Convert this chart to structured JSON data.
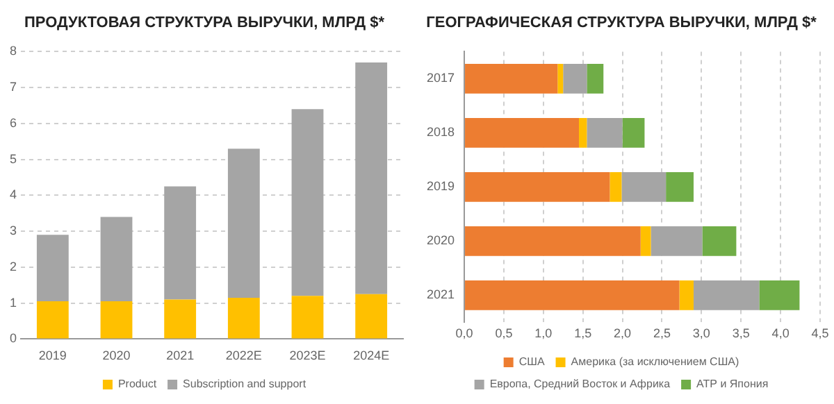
{
  "chart_data": [
    {
      "type": "bar",
      "title": "ПРОДУКТОВАЯ СТРУКТУРА ВЫРУЧКИ, МЛРД $*",
      "categories": [
        "2019",
        "2020",
        "2021",
        "2022E",
        "2023E",
        "2024E"
      ],
      "stacked": true,
      "series": [
        {
          "name": "Product",
          "color": "#ffc000",
          "values": [
            1.05,
            1.05,
            1.1,
            1.15,
            1.2,
            1.25
          ]
        },
        {
          "name": "Subscription and support",
          "color": "#a5a5a5",
          "values": [
            1.85,
            2.35,
            3.15,
            4.15,
            5.2,
            6.45
          ]
        }
      ],
      "ylim": [
        0,
        8
      ],
      "yticks": [
        0,
        1,
        2,
        3,
        4,
        5,
        6,
        7,
        8
      ],
      "grid": "y",
      "legend": "bottom"
    },
    {
      "type": "bar",
      "title": "ГЕОГРАФИЧЕСКАЯ СТРУКТУРА ВЫРУЧКИ, МЛРД $*",
      "orientation": "horizontal",
      "stacked": true,
      "categories": [
        "2017",
        "2018",
        "2019",
        "2020",
        "2021"
      ],
      "series": [
        {
          "name": "США",
          "color": "#ed7d31",
          "values": [
            1.18,
            1.45,
            1.84,
            2.23,
            2.72
          ]
        },
        {
          "name": "Америка (за исключением США)",
          "color": "#ffc000",
          "values": [
            0.07,
            0.1,
            0.15,
            0.13,
            0.18
          ]
        },
        {
          "name": "Европа, Средний Восток и Африка",
          "color": "#a5a5a5",
          "values": [
            0.3,
            0.45,
            0.56,
            0.65,
            0.83
          ]
        },
        {
          "name": "АТР и Япония",
          "color": "#70ad47",
          "values": [
            0.21,
            0.28,
            0.35,
            0.43,
            0.51
          ]
        }
      ],
      "xlim": [
        0,
        4.5
      ],
      "xticks": [
        {
          "value": 0,
          "label": "0,0"
        },
        {
          "value": 0.5,
          "label": "0,5"
        },
        {
          "value": 1,
          "label": "1,0"
        },
        {
          "value": 1.5,
          "label": "1,5"
        },
        {
          "value": 2,
          "label": "2,0"
        },
        {
          "value": 2.5,
          "label": "2,5"
        },
        {
          "value": 3,
          "label": "3,0"
        },
        {
          "value": 3.5,
          "label": "3,5"
        },
        {
          "value": 4,
          "label": "4,0"
        },
        {
          "value": 4.5,
          "label": "4,5"
        }
      ],
      "grid": "x",
      "legend": "bottom"
    }
  ]
}
